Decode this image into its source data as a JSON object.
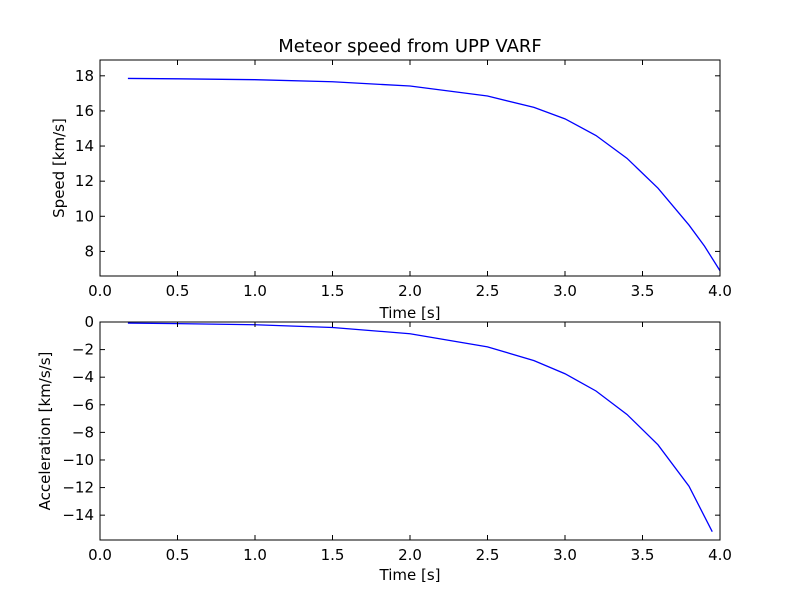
{
  "figure": {
    "title": "Meteor speed from  UPP VARF"
  },
  "chart_data": [
    {
      "type": "line",
      "title": "Meteor speed from  UPP VARF",
      "xlabel": "Time [s]",
      "ylabel": "Speed [km/s]",
      "xlim": [
        0.0,
        4.0
      ],
      "ylim": [
        6.6,
        18.9
      ],
      "x_ticks": [
        "0.0",
        "0.5",
        "1.0",
        "1.5",
        "2.0",
        "2.5",
        "3.0",
        "3.5",
        "4.0"
      ],
      "y_ticks": [
        "8",
        "10",
        "12",
        "14",
        "16",
        "18"
      ],
      "grid": false,
      "series": [
        {
          "color": "#0000ff",
          "x": [
            0.18,
            0.5,
            1.0,
            1.5,
            2.0,
            2.5,
            2.8,
            3.0,
            3.2,
            3.4,
            3.6,
            3.8,
            3.9,
            4.0
          ],
          "y": [
            17.85,
            17.83,
            17.78,
            17.66,
            17.42,
            16.85,
            16.2,
            15.55,
            14.6,
            13.3,
            11.6,
            9.5,
            8.3,
            6.9
          ]
        }
      ]
    },
    {
      "type": "line",
      "title": "",
      "xlabel": "Time [s]",
      "ylabel": "Acceleration [km/s/s]",
      "xlim": [
        0.0,
        4.0
      ],
      "ylim": [
        -15.8,
        0.0
      ],
      "x_ticks": [
        "0.0",
        "0.5",
        "1.0",
        "1.5",
        "2.0",
        "2.5",
        "3.0",
        "3.5",
        "4.0"
      ],
      "y_ticks": [
        "0",
        "−2",
        "−4",
        "−6",
        "−8",
        "−10",
        "−12",
        "−14"
      ],
      "grid": false,
      "series": [
        {
          "color": "#0000ff",
          "x": [
            0.18,
            0.5,
            1.0,
            1.5,
            2.0,
            2.5,
            2.8,
            3.0,
            3.2,
            3.4,
            3.6,
            3.8,
            3.95
          ],
          "y": [
            -0.08,
            -0.12,
            -0.2,
            -0.4,
            -0.85,
            -1.8,
            -2.8,
            -3.75,
            -5.0,
            -6.7,
            -8.9,
            -11.9,
            -15.2
          ]
        }
      ]
    }
  ]
}
